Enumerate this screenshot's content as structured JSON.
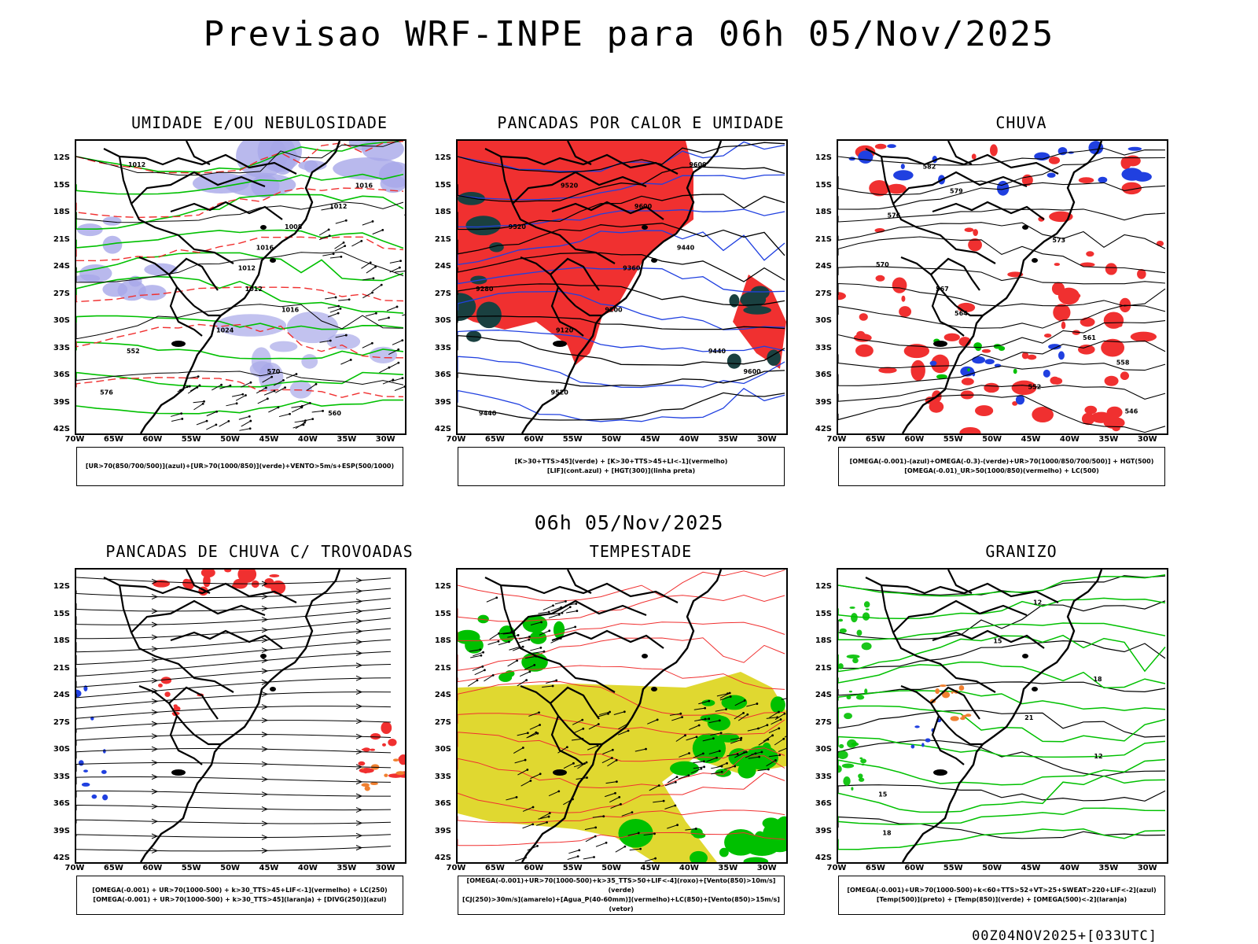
{
  "title": "Previsao WRF-INPE  para 06h 05/Nov/2025",
  "subtitle": "06h 05/Nov/2025",
  "footer": "00Z04NOV2025+[033UTC]",
  "axes": {
    "lat_labels": [
      "12S",
      "15S",
      "18S",
      "21S",
      "24S",
      "27S",
      "30S",
      "33S",
      "36S",
      "39S",
      "42S"
    ],
    "lon_labels": [
      "70W",
      "65W",
      "60W",
      "55W",
      "50W",
      "45W",
      "40W",
      "35W",
      "30W"
    ]
  },
  "colors": {
    "blue": "#2040e0",
    "green": "#00c000",
    "red": "#f03030",
    "lavender": "#a8a8e8",
    "darkteal": "#1a4040",
    "yellow": "#e0d830",
    "orange": "#f08030"
  },
  "panels": [
    {
      "title": "UMIDADE E/OU NEBULOSIDADE",
      "legend": [
        "[UR>70(850/700/500)](azul)+[UR>70(1000/850)](verde)+VENTO>5m/s+ESP(500/1000)"
      ],
      "contour_labels": [
        "1012",
        "1016",
        "1012",
        "1008",
        "1016",
        "1012",
        "1012",
        "1016",
        "1024",
        "552",
        "570",
        "576",
        "560"
      ]
    },
    {
      "title": "PANCADAS POR CALOR E UMIDADE",
      "legend": [
        "[K>30+TTS>45](verde) + [K>30+TTS>45+LI<-1](vermelho)",
        "[LIF](cont.azul) + [HGT(300)](linha preta)"
      ],
      "contour_labels": [
        "9600",
        "9520",
        "9600",
        "9520",
        "9440",
        "9360",
        "9280",
        "9200",
        "9120",
        "9440",
        "9600",
        "9520",
        "9440"
      ]
    },
    {
      "title": "CHUVA",
      "legend": [
        "[OMEGA(-0.001)-(azul)+OMEGA(-0.3)-(verde)+UR>70(1000/850/700/500)] + HGT(500)",
        "[OMEGA(-0.01)_UR>50(1000/850)(vermelho) + LC(500)"
      ],
      "contour_labels": [
        "582",
        "579",
        "576",
        "573",
        "570",
        "567",
        "564",
        "561",
        "558",
        "552",
        "546"
      ]
    },
    {
      "title": "PANCADAS DE CHUVA C/ TROVOADAS",
      "legend": [
        "[OMEGA(-0.001) + UR>70(1000-500) + k>30_TTS>45+LIF<-1](vermelho) + LC(250)",
        "[OMEGA(-0.001) + UR>70(1000-500) + k>30_TTS>45](laranja) + [DIVG(250)](azul)"
      ],
      "contour_labels": []
    },
    {
      "title": "TEMPESTADE",
      "legend": [
        "[OMEGA(-0.001)+UR>70(1000-500)+k>35_TTS>50+LIF<-4](roxo)+[Vento(850)>10m/s](verde)",
        "[CJ(250)>30m/s](amarelo)+[Agua_P(40-60mm)](vermelho)+LC(850)+[Vento(850)>15m/s](vetor)"
      ],
      "contour_labels": []
    },
    {
      "title": "GRANIZO",
      "legend": [
        "[OMEGA(-0.001)+UR>70(1000-500)+k<60+TTS>52+VT>25+SWEAT>220+LIF<-2](azul)",
        "[Temp(500)](preto) + [Temp(850)](verde) + [OMEGA(500)<-2](laranja)"
      ],
      "contour_labels": [
        "12",
        "15",
        "18",
        "21",
        "12",
        "15",
        "18"
      ]
    }
  ]
}
